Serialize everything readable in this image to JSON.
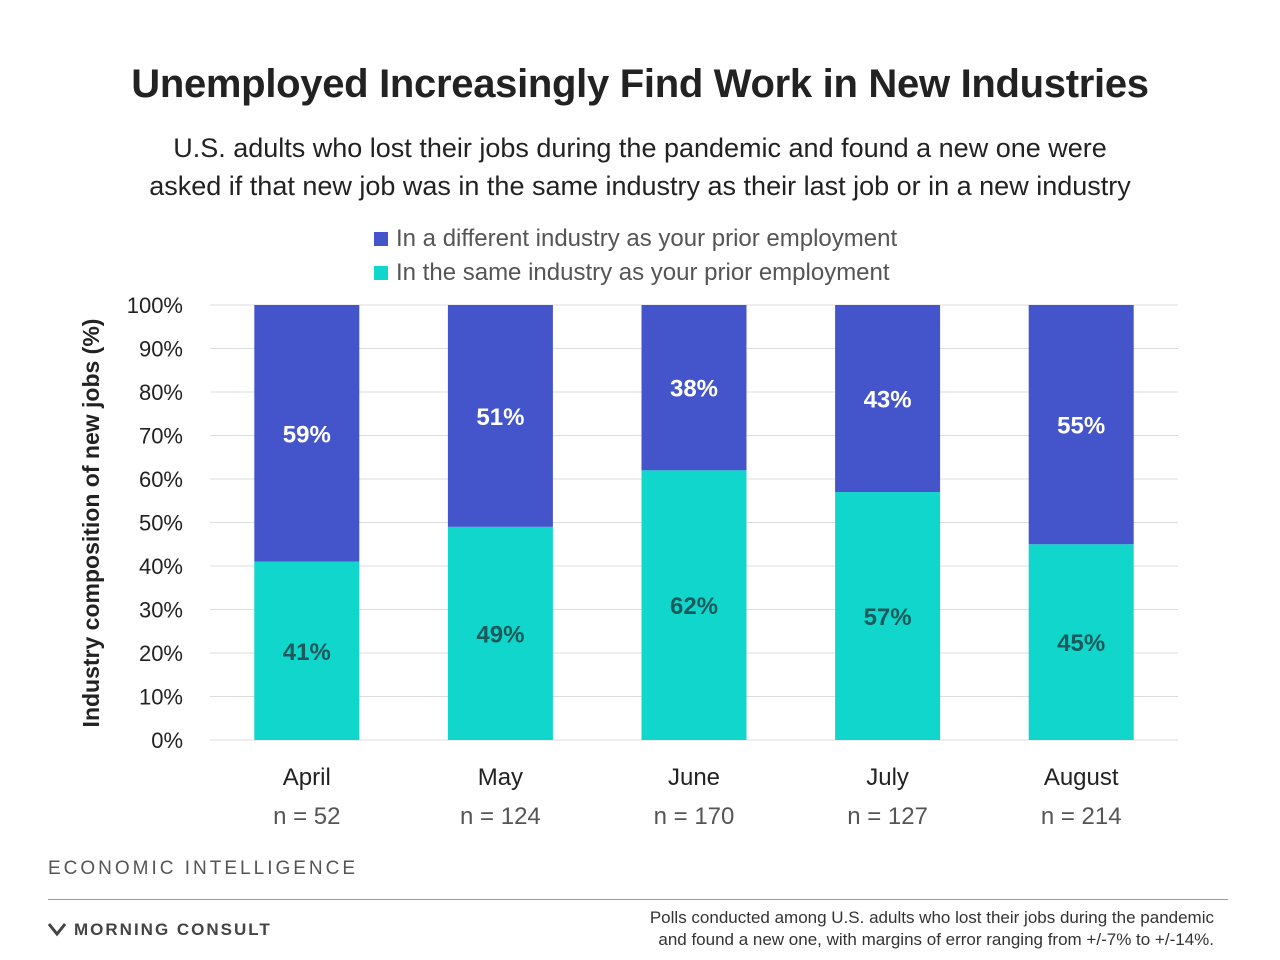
{
  "title": "Unemployed Increasingly Find Work in New Industries",
  "subtitle": [
    "U.S. adults who lost their jobs during the pandemic and found a new one were",
    "asked if that new job was in the same industry as their last job or in a new industry"
  ],
  "legend": {
    "different": "In a different industry as your prior employment",
    "same": "In the same industry as your prior employment"
  },
  "colors": {
    "different": "#4455cc",
    "same": "#11d6cc",
    "label_on_different": "#ffffff",
    "label_on_same": "#1a5a5a",
    "gridline": "#dddddd"
  },
  "chart_data": {
    "type": "bar",
    "stacked": true,
    "title": "Unemployed Increasingly Find Work in New Industries",
    "ylabel": "Industry composition of new jobs (%)",
    "xlabel": "",
    "ylim": [
      0,
      100
    ],
    "yticks": [
      "0%",
      "10%",
      "20%",
      "30%",
      "40%",
      "50%",
      "60%",
      "70%",
      "80%",
      "90%",
      "100%"
    ],
    "categories": [
      "April",
      "May",
      "June",
      "July",
      "August"
    ],
    "sample_sizes": [
      "n = 52",
      "n = 124",
      "n = 170",
      "n = 127",
      "n = 214"
    ],
    "grid": true,
    "legend_position": "top",
    "series": [
      {
        "name": "In the same industry as your prior employment",
        "key": "same",
        "values": [
          41,
          49,
          62,
          57,
          45
        ],
        "labels": [
          "41%",
          "49%",
          "62%",
          "57%",
          "45%"
        ]
      },
      {
        "name": "In a different industry as your prior employment",
        "key": "different",
        "values": [
          59,
          51,
          38,
          43,
          55
        ],
        "labels": [
          "59%",
          "51%",
          "38%",
          "43%",
          "55%"
        ]
      }
    ]
  },
  "footer": {
    "section": "ECONOMIC INTELLIGENCE",
    "brand": "MORNING CONSULT",
    "note": [
      "Polls conducted among U.S. adults who lost their jobs during the pandemic",
      "and found a new one, with margins of error ranging from +/-7% to +/-14%."
    ]
  }
}
